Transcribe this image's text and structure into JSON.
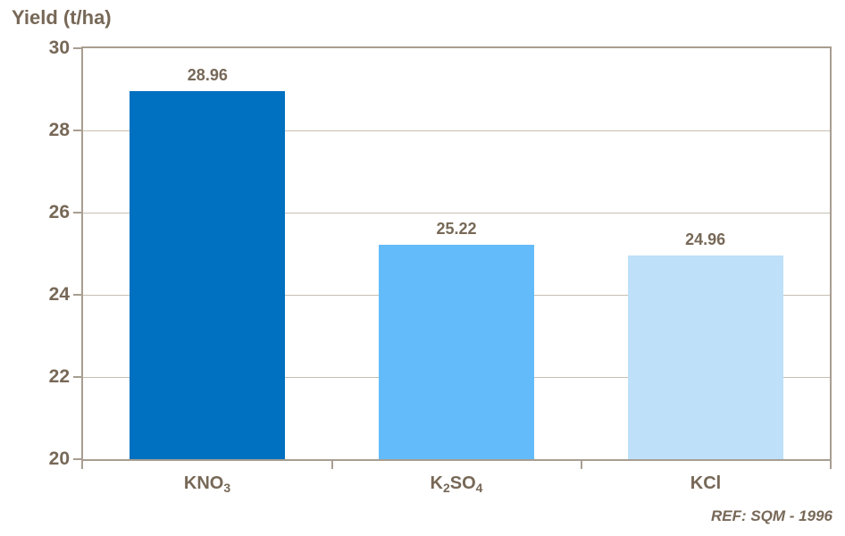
{
  "chart_data": {
    "type": "bar",
    "title": "Yield (t/ha)",
    "ylabel": "Yield (t/ha)",
    "xlabel": "",
    "ylim": [
      20,
      30
    ],
    "y_tick_step": 2,
    "y_ticks": [
      "30",
      "28",
      "26",
      "24",
      "22",
      "20"
    ],
    "grid": true,
    "legend": false,
    "categories": [
      "KNO3",
      "K2SO4",
      "KCl"
    ],
    "category_labels": [
      {
        "p1": "KNO",
        "s1": "3",
        "p2": "",
        "s2": ""
      },
      {
        "p1": "K",
        "s1": "2",
        "p2": "SO",
        "s2": "4"
      },
      {
        "p1": "KCl",
        "s1": "",
        "p2": "",
        "s2": ""
      }
    ],
    "values": [
      28.96,
      25.22,
      24.96
    ],
    "value_labels": [
      "28.96",
      "25.22",
      "24.96"
    ],
    "bar_colors": [
      "#0070C0",
      "#63BBF9",
      "#BEE0F8"
    ],
    "annotation": "REF: SQM - 1996"
  },
  "colors": {
    "text": "#776857",
    "axis": "#A89E91",
    "grid": "#C7BEB3",
    "background": "#FFFFFF"
  }
}
